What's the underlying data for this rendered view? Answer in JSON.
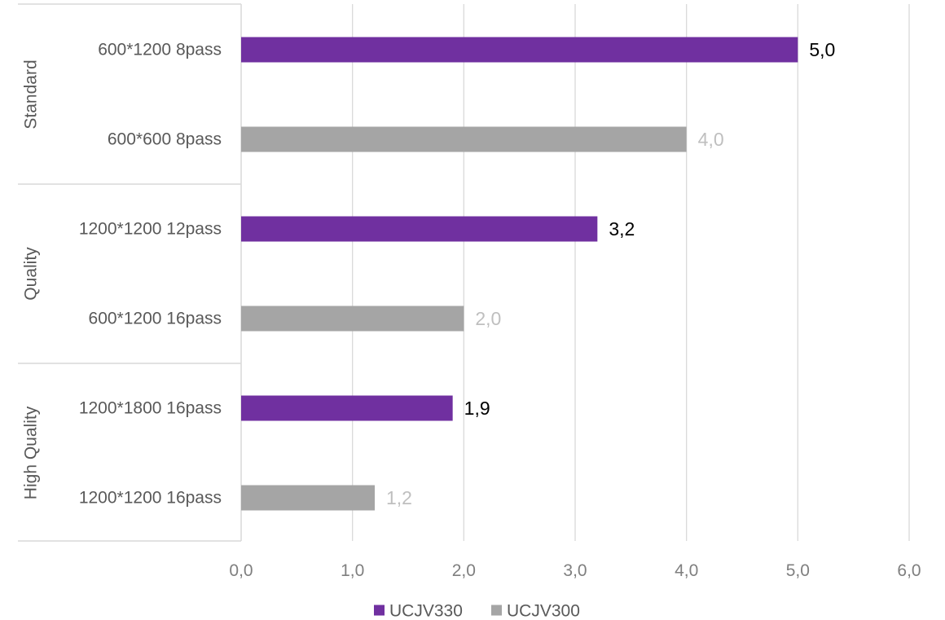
{
  "chart_data": {
    "type": "bar",
    "orientation": "horizontal",
    "title": "",
    "xlabel": "",
    "ylabel": "",
    "xlim": [
      0,
      6
    ],
    "x_ticks": [
      0,
      1,
      2,
      3,
      4,
      5,
      6
    ],
    "x_tick_labels": [
      "0,0",
      "1,0",
      "2,0",
      "3,0",
      "4,0",
      "5,0",
      "6,0"
    ],
    "grid": "vertical",
    "legend_position": "bottom",
    "groups": [
      {
        "label": "Standard",
        "items": [
          {
            "label": "600*1200 8pass",
            "series": "UCJV330",
            "value": 5.0,
            "value_label": "5,0"
          },
          {
            "label": "600*600 8pass",
            "series": "UCJV300",
            "value": 4.0,
            "value_label": "4,0"
          }
        ]
      },
      {
        "label": "Quality",
        "items": [
          {
            "label": "1200*1200 12pass",
            "series": "UCJV330",
            "value": 3.2,
            "value_label": "3,2"
          },
          {
            "label": "600*1200 16pass",
            "series": "UCJV300",
            "value": 2.0,
            "value_label": "2,0"
          }
        ]
      },
      {
        "label": "High Quality",
        "items": [
          {
            "label": "1200*1800 16pass",
            "series": "UCJV330",
            "value": 1.9,
            "value_label": "1,9"
          },
          {
            "label": "1200*1200 16pass",
            "series": "UCJV300",
            "value": 1.2,
            "value_label": "1,2"
          }
        ]
      }
    ],
    "series": [
      {
        "name": "UCJV330",
        "color": "#7030a0",
        "label_color": "#000000"
      },
      {
        "name": "UCJV300",
        "color": "#a5a5a5",
        "label_color": "#bfbfbf"
      }
    ],
    "colors": {
      "grid": "#d9d9d9",
      "axis": "#d9d9d9"
    }
  }
}
